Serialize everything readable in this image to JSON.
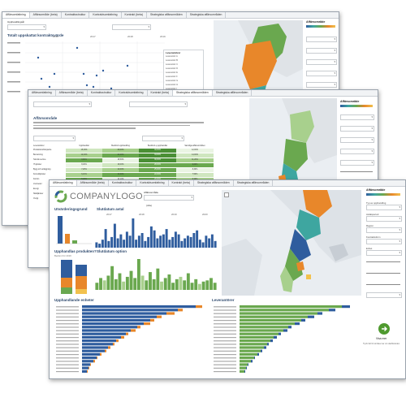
{
  "win1": {
    "tabs": [
      "Affärsomfattning",
      "Affärsområde (beta)",
      "Kontraktsstruktur",
      "Kontraktsomfattning",
      "Kontrakt (beta)",
      "Strategiska affärsområden",
      "Strategiska affärsområden"
    ],
    "filter_label": "Upphandlingsår",
    "chart_title": "Totalt uppskattat kontraktsvärde",
    "axis_years": [
      "2016",
      "2017",
      "2018",
      "2019"
    ],
    "list_title": "Leverantörer",
    "list_items": [
      "Leverantör A",
      "Leverantör B",
      "Leverantör C",
      "Leverantör D",
      "Leverantör E",
      "Leverantör F",
      "Leverantör G",
      "Leverantör H",
      "Leverantör I",
      "Leverantör J",
      "Leverantör K"
    ],
    "legend_title": "Affärsområde"
  },
  "win2": {
    "tabs": [
      "Affärsomfattning",
      "Affärsområde (beta)",
      "Kontraktsstruktur",
      "Kontraktsomfattning",
      "Kontrakt (beta)",
      "Strategiska affärsområden",
      "Strategiska affärsområden"
    ],
    "section_title": "Affärsområde",
    "table_headers": [
      "Leverantörer",
      "Upphandlat",
      "Bedömd upphandling",
      "Bedömd ej upphandlat",
      "Samtliga affärsområden"
    ],
    "table_rows": [
      [
        "Produktionsfrämjande",
        "15,30%",
        "20,00%",
        "40,00%",
        "12,00%"
      ],
      [
        "Bemanning",
        "12,00%",
        "22,20%",
        "33,00%",
        "14,00%"
      ],
      [
        "Teknisk service",
        "9,80%",
        "18,50%",
        "30,00%",
        "11,20%"
      ],
      [
        "IT-tjänster",
        "8,40%",
        "16,00%",
        "28,00%",
        "9,60%"
      ],
      [
        "Bygg och anläggning",
        "7,20%",
        "14,00%",
        "25,00%",
        "8,30%"
      ],
      [
        "Konsulttjänster",
        "6,10%",
        "12,30%",
        "22,00%",
        "7,50%"
      ],
      [
        "Fordon",
        "5,40%",
        "10,10%",
        "20,00%",
        "6,40%"
      ],
      [
        "Livsmedel",
        "4,90%",
        "9,00%",
        "18,00%",
        "5,80%"
      ],
      [
        "Energi",
        "4,00%",
        "8,20%",
        "15,00%",
        "5,10%"
      ],
      [
        "Städtjänster",
        "3,20%",
        "7,10%",
        "12,00%",
        "4,20%"
      ],
      [
        "Övrigt",
        "2,10%",
        "5,00%",
        "10,00%",
        "3,00%"
      ]
    ],
    "legend_title": "Affärsområde"
  },
  "win3": {
    "tabs": [
      "Affärsomfattning",
      "Affärsområde (beta)",
      "Kontraktsstruktur",
      "Kontraktsomfattning",
      "Kontrakt (beta)",
      "Strategiska affärsområden",
      "Strategiska affärsområden"
    ],
    "logo_text": "COMPANYLOGO",
    "filter_label": "Affärsområde",
    "filter_value": "(Alla)",
    "panel1_title": "Utvärderingsgrund",
    "panel2_title": "Slutdatum avtal",
    "panel3_title": "Upphandlas produkten?",
    "panel3_sub": "Bedömt för 2019",
    "panel4_title": "Slutdatum option",
    "panel5_title": "Upphandlande enheter",
    "panel6_title": "Leverantörer",
    "timeline_years": [
      "2017",
      "2018",
      "2019",
      "2020"
    ],
    "right_panel_title": "Affärsområde",
    "right_filters": [
      "Typ av upphandling",
      "Avtalsperiod",
      "Region",
      "Kontraktsform",
      "Enhet"
    ],
    "cta_label": "Visa mer",
    "footnote": "Tryck här för att läsa mer om dashboarden."
  },
  "colors": {
    "blue": "#2f5d9e",
    "orange": "#e8872a",
    "green": "#6aa84f",
    "teal": "#3ea6a0",
    "lightgreen": "#a8d08d"
  }
}
